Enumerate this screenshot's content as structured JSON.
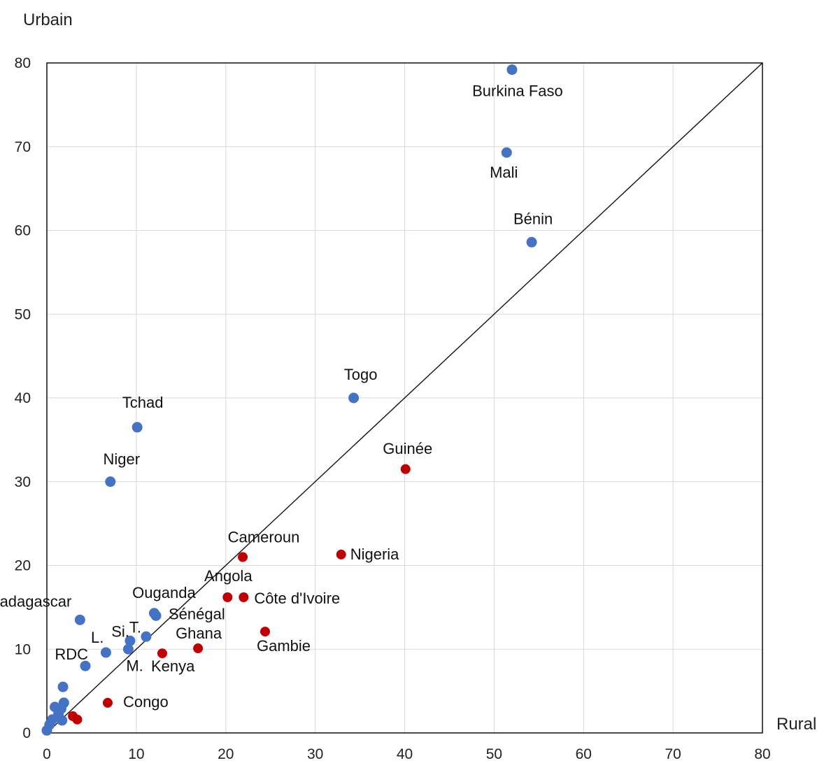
{
  "chart_data": {
    "type": "scatter",
    "xlabel": "Rural",
    "ylabel": "Urbain",
    "xlim": [
      0,
      80
    ],
    "ylim": [
      0,
      80
    ],
    "x_ticks": [
      "0",
      "10",
      "20",
      "30",
      "40",
      "50",
      "60",
      "70",
      "80"
    ],
    "y_ticks": [
      "0",
      "10",
      "20",
      "30",
      "40",
      "50",
      "60",
      "70",
      "80"
    ],
    "grid": true,
    "reference_line": "y = x",
    "colors": {
      "blue": "#4472c4",
      "red": "#c00000"
    },
    "series": [
      {
        "color": "blue",
        "points": [
          {
            "x": 52.0,
            "y": 79.2,
            "label": "Burkina Faso"
          },
          {
            "x": 51.4,
            "y": 69.3,
            "label": "Mali"
          },
          {
            "x": 54.2,
            "y": 58.6,
            "label": "Bénin"
          },
          {
            "x": 34.3,
            "y": 40.0,
            "label": "Togo"
          },
          {
            "x": 10.1,
            "y": 36.5,
            "label": "Tchad"
          },
          {
            "x": 7.1,
            "y": 30.0,
            "label": "Niger"
          },
          {
            "x": 12.0,
            "y": 14.3,
            "label": "Ouganda"
          },
          {
            "x": 12.2,
            "y": 14.0,
            "label": "Sénégal"
          },
          {
            "x": 3.7,
            "y": 13.5,
            "label": "Madagascar"
          },
          {
            "x": 11.1,
            "y": 11.5,
            "label": "T."
          },
          {
            "x": 9.3,
            "y": 11.0,
            "label": "Si."
          },
          {
            "x": 6.6,
            "y": 9.6,
            "label": "L."
          },
          {
            "x": 9.1,
            "y": 10.0,
            "label": "M."
          },
          {
            "x": 4.3,
            "y": 8.0,
            "label": "RDC"
          },
          {
            "x": 1.8,
            "y": 5.5,
            "label": ""
          },
          {
            "x": 1.9,
            "y": 3.6,
            "label": ""
          },
          {
            "x": 0.9,
            "y": 3.1,
            "label": ""
          },
          {
            "x": 1.6,
            "y": 2.9,
            "label": ""
          },
          {
            "x": 1.3,
            "y": 2.3,
            "label": ""
          },
          {
            "x": 0.6,
            "y": 1.6,
            "label": ""
          },
          {
            "x": 1.7,
            "y": 1.5,
            "label": ""
          },
          {
            "x": 0.3,
            "y": 1.0,
            "label": ""
          },
          {
            "x": 0.0,
            "y": 0.3,
            "label": ""
          }
        ]
      },
      {
        "color": "red",
        "points": [
          {
            "x": 40.1,
            "y": 31.5,
            "label": "Guinée"
          },
          {
            "x": 21.9,
            "y": 21.0,
            "label": "Cameroun"
          },
          {
            "x": 32.9,
            "y": 21.3,
            "label": "Nigeria"
          },
          {
            "x": 20.2,
            "y": 16.2,
            "label": "Angola"
          },
          {
            "x": 22.0,
            "y": 16.2,
            "label": "Côte d'Ivoire"
          },
          {
            "x": 24.4,
            "y": 12.1,
            "label": "Gambie"
          },
          {
            "x": 16.9,
            "y": 10.1,
            "label": "Ghana"
          },
          {
            "x": 12.9,
            "y": 9.5,
            "label": "Kenya"
          },
          {
            "x": 6.8,
            "y": 3.6,
            "label": "Congo"
          },
          {
            "x": 2.9,
            "y": 2.0,
            "label": ""
          },
          {
            "x": 3.4,
            "y": 1.6,
            "label": ""
          }
        ]
      }
    ]
  }
}
